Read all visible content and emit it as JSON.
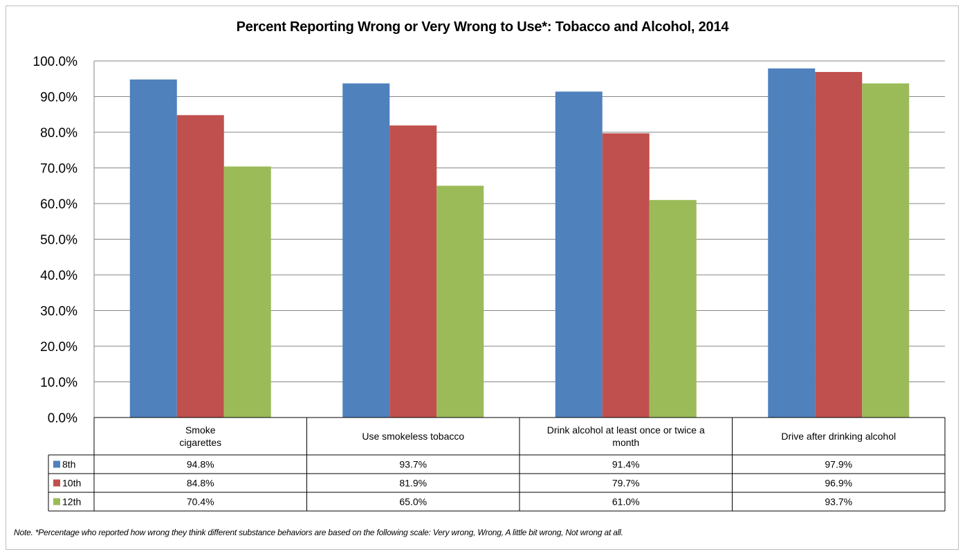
{
  "chart_data": {
    "type": "bar",
    "title": "Percent Reporting Wrong or Very Wrong to Use*: Tobacco and Alcohol, 2014",
    "categories": [
      [
        "Smoke",
        "cigarettes"
      ],
      [
        "Use smokeless tobacco"
      ],
      [
        "Drink alcohol at least once or twice a",
        "month"
      ],
      [
        "Drive after drinking alcohol"
      ]
    ],
    "series": [
      {
        "name": "8th",
        "color": "#4F81BD",
        "values": [
          94.8,
          93.7,
          91.4,
          97.9
        ],
        "labels": [
          "94.8%",
          "93.7%",
          "91.4%",
          "97.9%"
        ]
      },
      {
        "name": "10th",
        "color": "#C0504D",
        "values": [
          84.8,
          81.9,
          79.7,
          96.9
        ],
        "labels": [
          "84.8%",
          "81.9%",
          "79.7%",
          "96.9%"
        ]
      },
      {
        "name": "12th",
        "color": "#9BBB59",
        "values": [
          70.4,
          65.0,
          61.0,
          93.7
        ],
        "labels": [
          "70.4%",
          "65.0%",
          "61.0%",
          "93.7%"
        ]
      }
    ],
    "y_ticks": [
      "0.0%",
      "10.0%",
      "20.0%",
      "30.0%",
      "40.0%",
      "50.0%",
      "60.0%",
      "70.0%",
      "80.0%",
      "90.0%",
      "100.0%"
    ],
    "ylim": [
      0,
      100
    ],
    "grid": true,
    "legend": "data-table",
    "note": "Note. *Percentage who reported how wrong they think different substance behaviors are based on the following scale: Very wrong, Wrong, A little bit wrong, Not wrong at all."
  }
}
